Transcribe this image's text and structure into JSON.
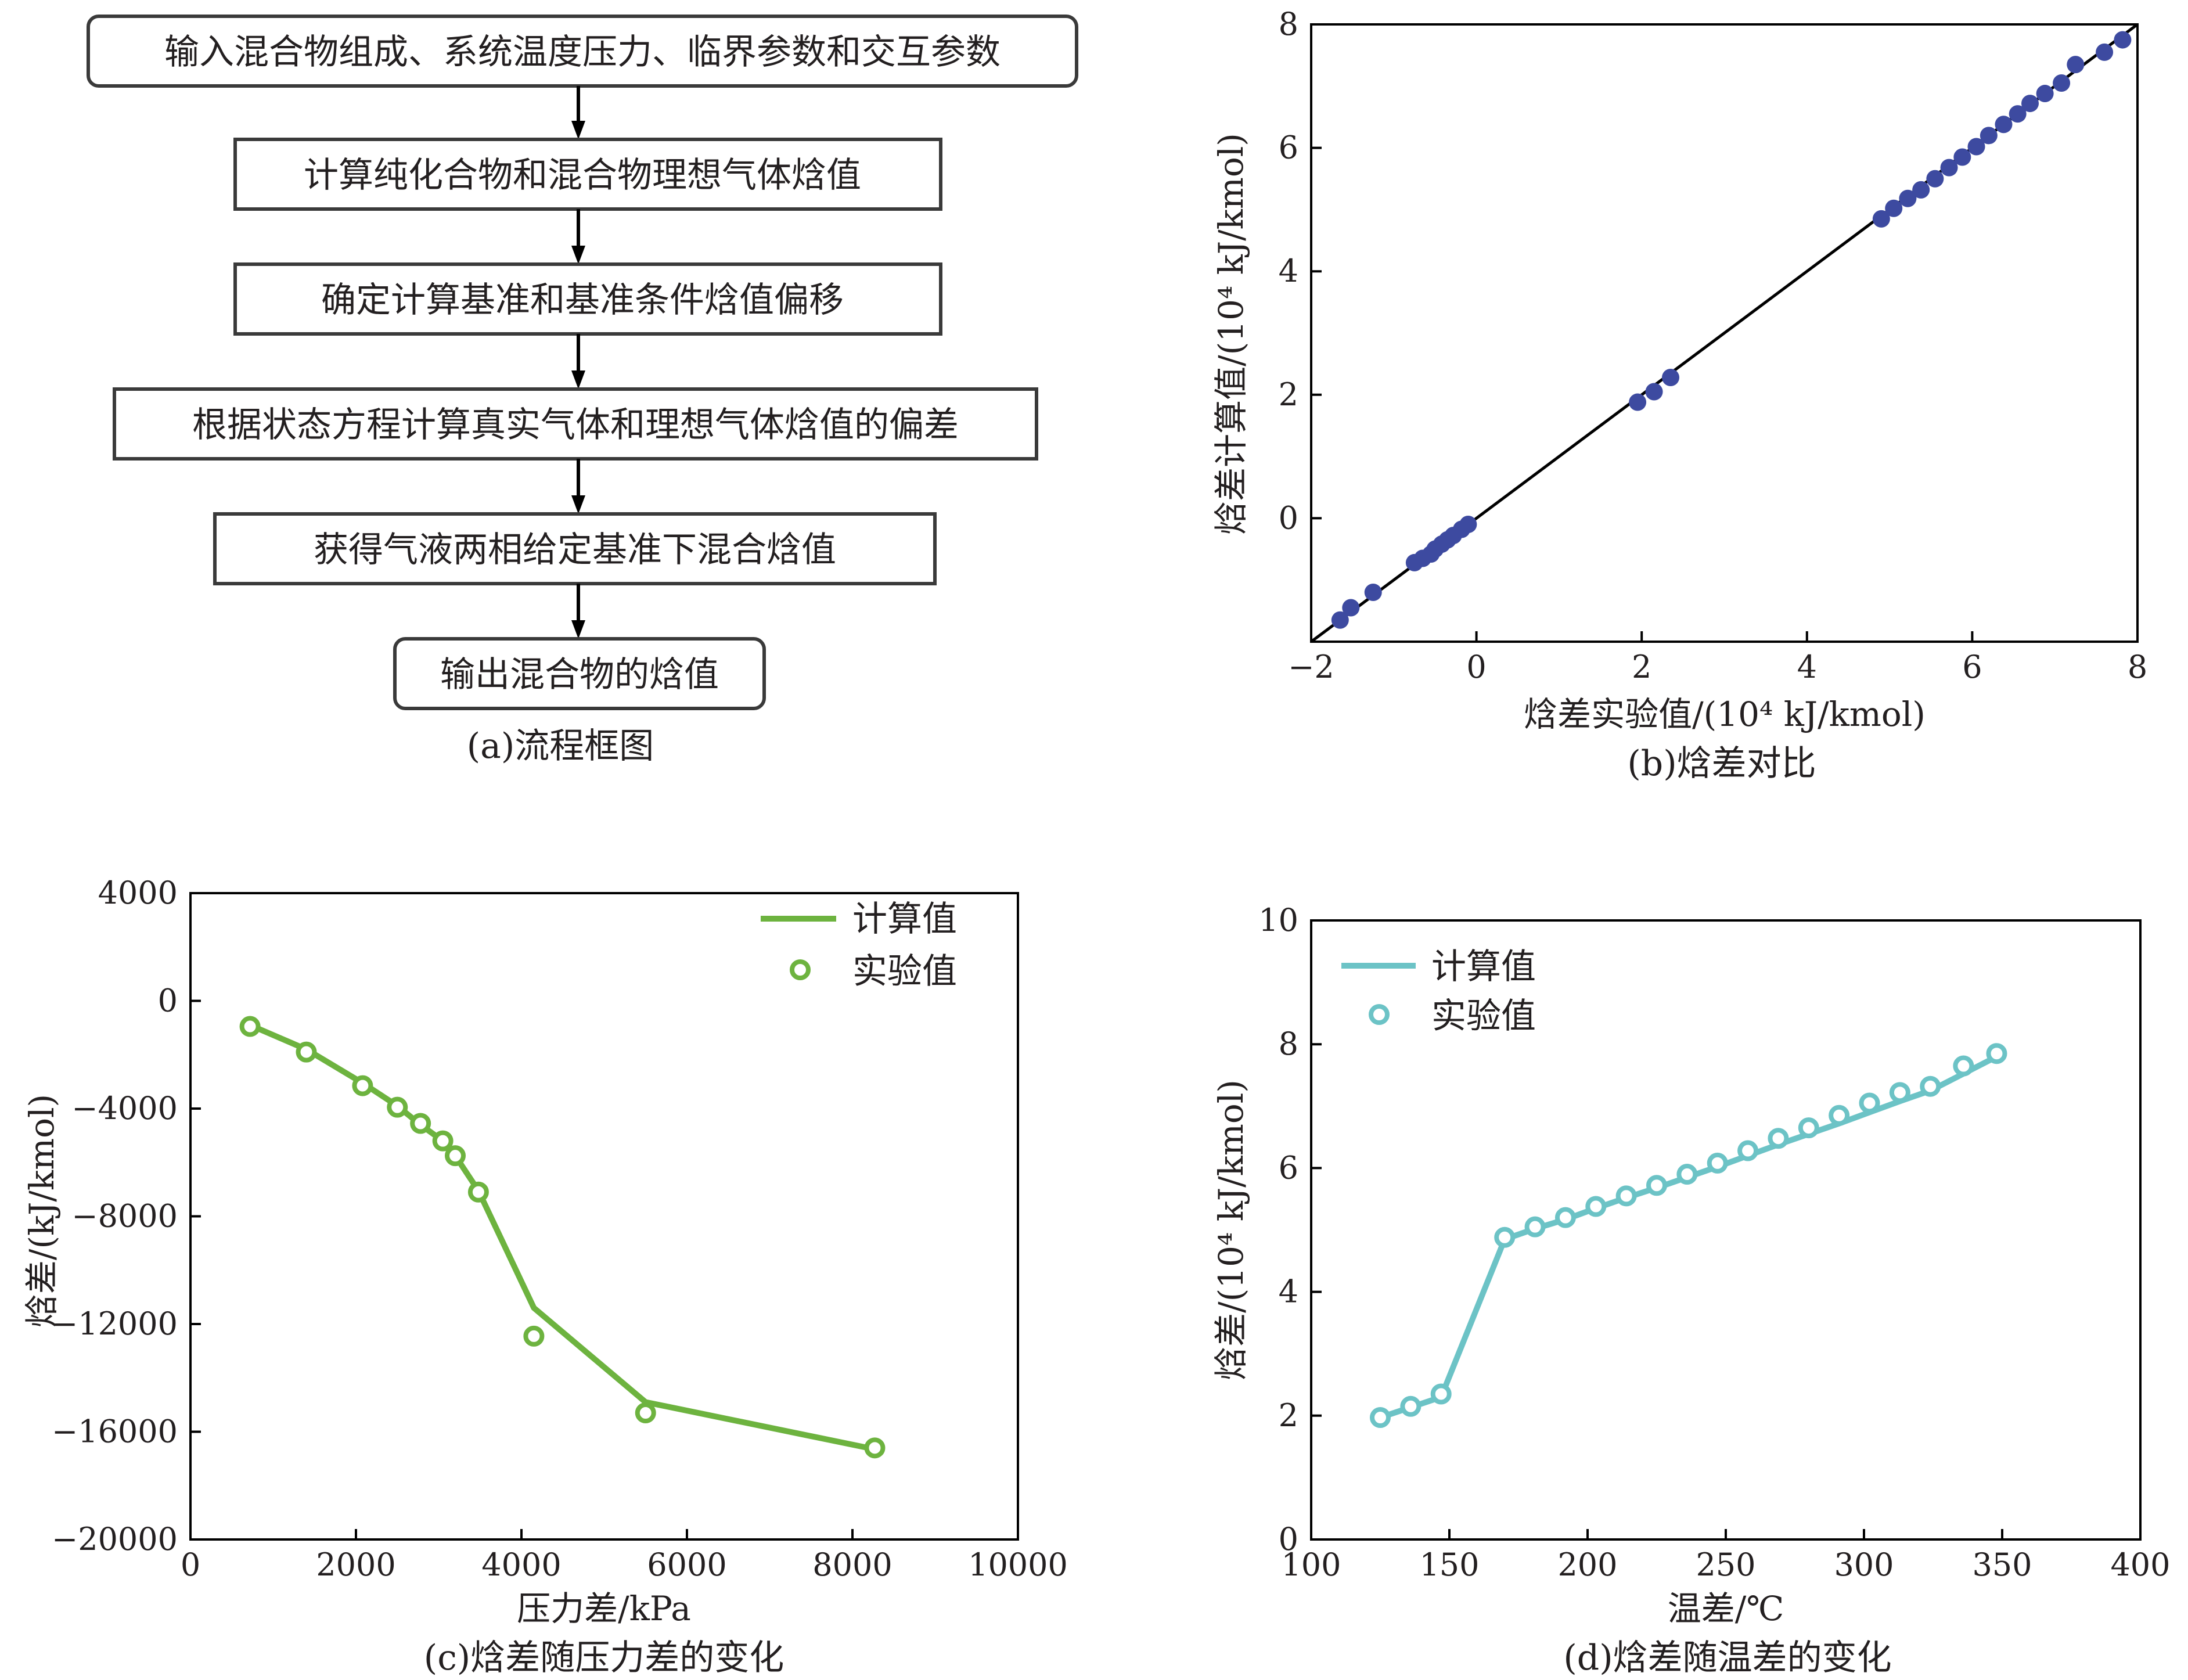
{
  "flowchart": {
    "boxes": [
      "输入混合物组成、系统温度压力、临界参数和交互参数",
      "计算纯化合物和混合物理想气体焓值",
      "确定计算基准和基准条件焓值偏移",
      "根据状态方程计算真实气体和理想气体焓值的偏差",
      "获得气液两相给定基准下混合焓值",
      "输出混合物的焓值"
    ],
    "caption": "(a)流程框图"
  },
  "chart_data": [
    {
      "id": "b",
      "type": "scatter",
      "title": "",
      "caption": "(b)焓差对比",
      "xlabel": "焓差实验值/(10⁴ kJ/kmol)",
      "ylabel": "焓差计算值/(10⁴ kJ/kmol)",
      "xlim": [
        -2,
        8
      ],
      "ylim": [
        -2,
        8
      ],
      "xticks": [
        -2,
        0,
        2,
        4,
        6,
        8
      ],
      "yticks": [
        0,
        2,
        4,
        6,
        8
      ],
      "xtick_labels": [
        "−2",
        "0",
        "2",
        "4",
        "6",
        "8"
      ],
      "ytick_labels": [
        "0",
        "2",
        "4",
        "6",
        "8"
      ],
      "reference_line": [
        [
          -2,
          -2
        ],
        [
          8,
          8
        ]
      ],
      "marker_color": "#3d4aa0",
      "points": [
        [
          -1.65,
          -1.65
        ],
        [
          -1.52,
          -1.45
        ],
        [
          -1.25,
          -1.2
        ],
        [
          -0.75,
          -0.72
        ],
        [
          -0.65,
          -0.65
        ],
        [
          -0.55,
          -0.58
        ],
        [
          -0.5,
          -0.5
        ],
        [
          -0.42,
          -0.42
        ],
        [
          -0.35,
          -0.35
        ],
        [
          -0.28,
          -0.28
        ],
        [
          -0.18,
          -0.18
        ],
        [
          -0.1,
          -0.1
        ],
        [
          1.95,
          1.88
        ],
        [
          2.15,
          2.05
        ],
        [
          2.35,
          2.28
        ],
        [
          4.9,
          4.85
        ],
        [
          5.05,
          5.02
        ],
        [
          5.22,
          5.18
        ],
        [
          5.38,
          5.32
        ],
        [
          5.55,
          5.5
        ],
        [
          5.72,
          5.68
        ],
        [
          5.88,
          5.85
        ],
        [
          6.05,
          6.02
        ],
        [
          6.2,
          6.2
        ],
        [
          6.38,
          6.38
        ],
        [
          6.55,
          6.55
        ],
        [
          6.7,
          6.72
        ],
        [
          6.88,
          6.88
        ],
        [
          7.08,
          7.05
        ],
        [
          7.25,
          7.35
        ],
        [
          7.6,
          7.55
        ],
        [
          7.82,
          7.75
        ]
      ]
    },
    {
      "id": "c",
      "type": "line",
      "caption": "(c)焓差随压力差的变化",
      "xlabel": "压力差/kPa",
      "ylabel": "焓差/(kJ/kmol)",
      "xlim": [
        0,
        10000
      ],
      "ylim": [
        -20000,
        4000
      ],
      "xticks": [
        0,
        2000,
        4000,
        6000,
        8000,
        10000
      ],
      "yticks": [
        -20000,
        -16000,
        -12000,
        -8000,
        -4000,
        0,
        4000
      ],
      "xtick_labels": [
        "0",
        "2000",
        "4000",
        "6000",
        "8000",
        "10000"
      ],
      "ytick_labels": [
        "−20000",
        "−16000",
        "−12000",
        "−8000",
        "−4000",
        "0",
        "4000"
      ],
      "color": "#6db33f",
      "series": [
        {
          "name": "计算值",
          "style": "line",
          "x": [
            720,
            1400,
            2080,
            2500,
            2780,
            3050,
            3200,
            3480,
            4150,
            5500,
            8270
          ],
          "y": [
            -900,
            -1800,
            -3050,
            -3900,
            -4600,
            -5200,
            -5750,
            -7050,
            -11400,
            -14900,
            -16650
          ]
        },
        {
          "name": "实验值",
          "style": "marker",
          "x": [
            720,
            1400,
            2080,
            2500,
            2780,
            3050,
            3200,
            3480,
            4150,
            5500,
            8270
          ],
          "y": [
            -950,
            -1900,
            -3150,
            -3950,
            -4550,
            -5200,
            -5750,
            -7100,
            -12450,
            -15300,
            -16600
          ]
        }
      ]
    },
    {
      "id": "d",
      "type": "line",
      "caption": "(d)焓差随温差的变化",
      "xlabel": "温差/℃",
      "ylabel": "焓差/(10⁴ kJ/kmol)",
      "xlim": [
        100,
        400
      ],
      "ylim": [
        0,
        10
      ],
      "xticks": [
        100,
        150,
        200,
        250,
        300,
        350,
        400
      ],
      "yticks": [
        0,
        2,
        4,
        6,
        8,
        10
      ],
      "xtick_labels": [
        "100",
        "150",
        "200",
        "250",
        "300",
        "350",
        "400"
      ],
      "ytick_labels": [
        "0",
        "2",
        "4",
        "6",
        "8",
        "10"
      ],
      "color": "#6cc3c6",
      "series": [
        {
          "name": "计算值",
          "style": "line",
          "x": [
            125,
            147,
            170,
            181,
            192,
            203,
            214,
            225,
            236,
            247,
            258,
            269,
            280,
            291,
            302,
            313,
            324,
            348
          ],
          "y": [
            1.97,
            2.3,
            4.85,
            5.02,
            5.17,
            5.35,
            5.52,
            5.68,
            5.85,
            6.02,
            6.2,
            6.38,
            6.55,
            6.72,
            6.9,
            7.08,
            7.25,
            7.8
          ]
        },
        {
          "name": "实验值",
          "style": "marker",
          "x": [
            125,
            136,
            147,
            170,
            181,
            192,
            203,
            214,
            225,
            236,
            247,
            258,
            269,
            280,
            291,
            302,
            313,
            324,
            336,
            348
          ],
          "y": [
            1.97,
            2.15,
            2.35,
            4.88,
            5.05,
            5.2,
            5.38,
            5.55,
            5.72,
            5.9,
            6.08,
            6.28,
            6.48,
            6.65,
            6.85,
            7.05,
            7.22,
            7.32,
            7.65,
            7.85
          ]
        }
      ]
    }
  ]
}
